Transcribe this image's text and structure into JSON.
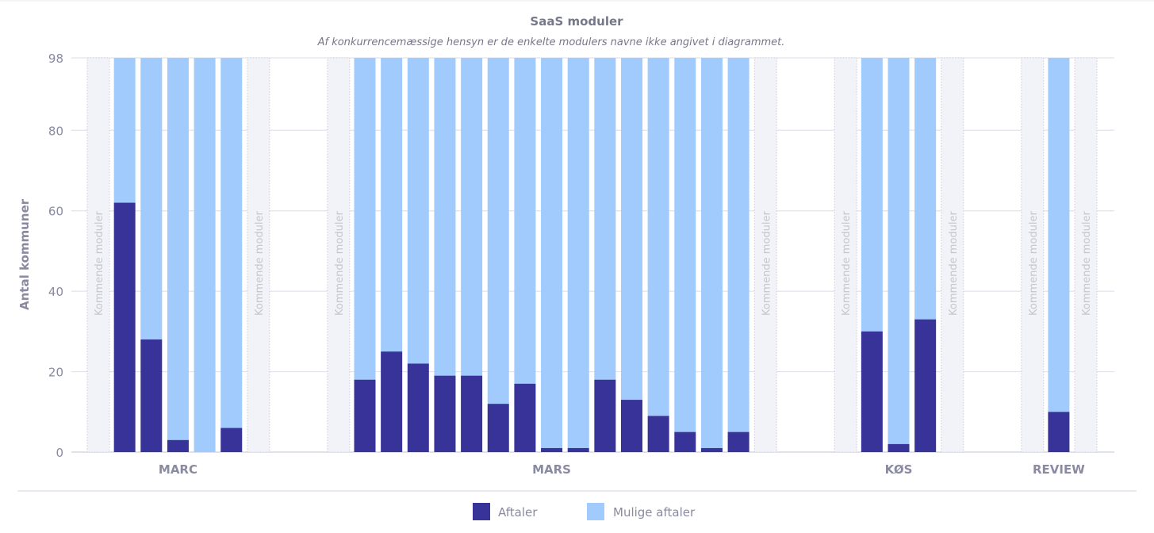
{
  "chart_data": {
    "type": "bar",
    "stacked": true,
    "title": "SaaS moduler",
    "subtitle": "Af konkurrencemæssige hensyn er de enkelte modulers navne ikke angivet i diagrammet.",
    "ylabel": "Antal kommuner",
    "ylim": [
      0,
      98
    ],
    "yticks": [
      "0",
      "20",
      "40",
      "60",
      "80",
      "98"
    ],
    "grid": true,
    "legend_placement": "bottom",
    "placeholder_label": "Kommende moduler",
    "series": [
      {
        "name": "Aftaler",
        "color": "#373399"
      },
      {
        "name": "Mulige aftaler",
        "color": "#a1cbfd"
      }
    ],
    "groups": [
      {
        "name": "MARC",
        "aftaler": [
          62,
          28,
          3,
          0,
          6
        ],
        "mulige_aftaler": [
          36,
          70,
          95,
          98,
          92
        ]
      },
      {
        "name": "MARS",
        "aftaler": [
          18,
          25,
          22,
          19,
          19,
          12,
          17,
          1,
          1,
          18,
          13,
          9,
          5,
          1,
          5
        ],
        "mulige_aftaler": [
          80,
          73,
          76,
          79,
          79,
          86,
          81,
          97,
          97,
          80,
          85,
          89,
          93,
          97,
          93
        ]
      },
      {
        "name": "KØS",
        "aftaler": [
          30,
          2,
          33
        ],
        "mulige_aftaler": [
          68,
          96,
          65
        ]
      },
      {
        "name": "REVIEW",
        "aftaler": [
          10
        ],
        "mulige_aftaler": [
          88
        ]
      }
    ]
  }
}
